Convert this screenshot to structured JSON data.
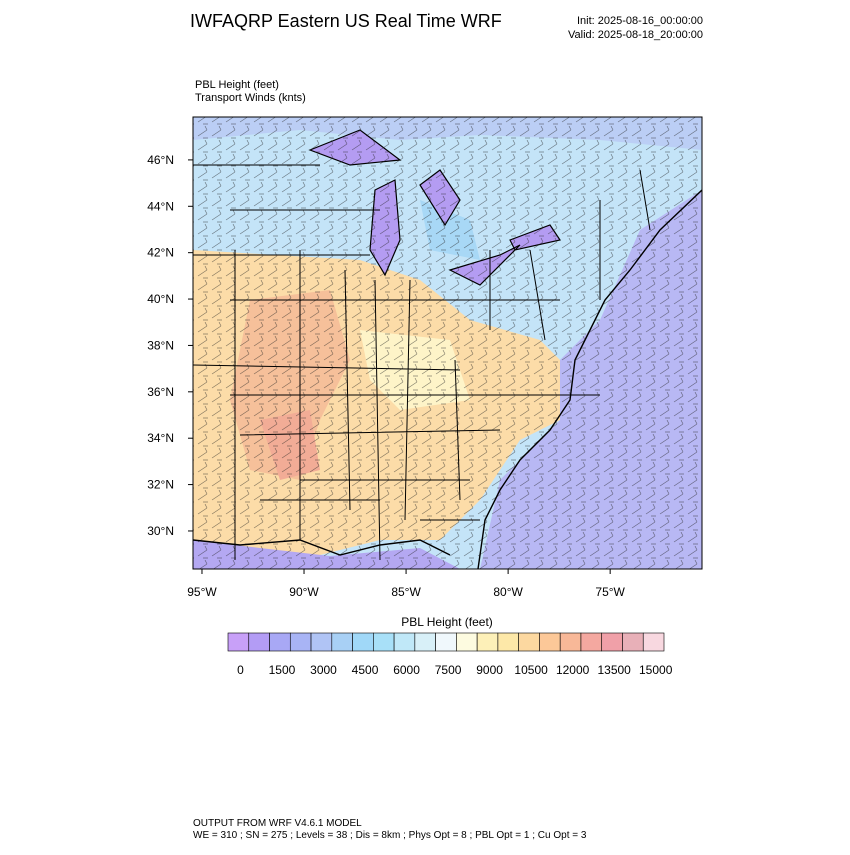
{
  "header": {
    "title": "IWFAQRP Eastern US Real Time WRF",
    "init": "Init: 2025-08-16_00:00:00",
    "valid": "Valid: 2025-08-18_20:00:00"
  },
  "fields": {
    "primary": "PBL Height   (feet)",
    "secondary": "Transport Winds   (knts)"
  },
  "map": {
    "xlim": [
      -95.44,
      -70.5
    ],
    "ylim": [
      28.36,
      47.85
    ],
    "xticks": [
      {
        "value": -95,
        "label": "95°W"
      },
      {
        "value": -90,
        "label": "90°W"
      },
      {
        "value": -85,
        "label": "85°W"
      },
      {
        "value": -80,
        "label": "80°W"
      },
      {
        "value": -75,
        "label": "75°W"
      }
    ],
    "yticks": [
      {
        "value": 30,
        "label": "30°N"
      },
      {
        "value": 32,
        "label": "32°N"
      },
      {
        "value": 34,
        "label": "34°N"
      },
      {
        "value": 36,
        "label": "36°N"
      },
      {
        "value": 38,
        "label": "38°N"
      },
      {
        "value": 40,
        "label": "40°N"
      },
      {
        "value": 42,
        "label": "42°N"
      },
      {
        "value": 44,
        "label": "44°N"
      },
      {
        "value": 46,
        "label": "46°N"
      }
    ]
  },
  "colorbar": {
    "title": "PBL Height  (feet)",
    "colors": [
      "#c8a0f8",
      "#b39cf5",
      "#a8a8f5",
      "#a8b4f5",
      "#b0c4f5",
      "#a8d0f5",
      "#a0d8f8",
      "#a8e0f8",
      "#c0e8f8",
      "#d8f0f8",
      "#f0f8fc",
      "#fdfbe0",
      "#fdf0b8",
      "#fde8a8",
      "#fcd8a0",
      "#fcc898",
      "#f8b898",
      "#f4a8a0",
      "#f0a0a8",
      "#e8b0b8",
      "#f8d8e0"
    ],
    "ticks": [
      0,
      1500,
      3000,
      4500,
      6000,
      7500,
      9000,
      10500,
      12000,
      13500,
      15000
    ]
  },
  "footer": {
    "line1": "OUTPUT FROM WRF V4.6.1 MODEL",
    "line2": "WE = 310 ; SN = 275 ; Levels = 38 ; Dis = 8km ; Phys Opt = 8 ; PBL Opt = 1 ; Cu Opt = 3"
  }
}
